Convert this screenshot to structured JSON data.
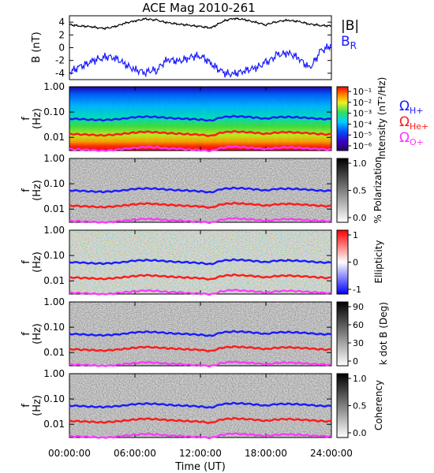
{
  "title": "ACE Mag 2010-261",
  "colors": {
    "b_total": "#000000",
    "b_r": "#1a1aff",
    "h_plus": "#1a1aff",
    "he_plus": "#ff1a1a",
    "o_plus": "#ff33ff",
    "background": "#ffffff"
  },
  "chart_data": [
    {
      "type": "line",
      "panel": "magnetic-field",
      "ylabel": "B (nT)",
      "ylim": [
        -5,
        5
      ],
      "yticks": [
        "4",
        "2",
        "0",
        "-2",
        "-4"
      ],
      "legend": [
        "|B|",
        "B_R"
      ],
      "legend_placement": "right",
      "x_range_hours": [
        0,
        24
      ],
      "series": [
        {
          "name": "|B|",
          "x": [
            0,
            1,
            2,
            3,
            4,
            5,
            6,
            7,
            8,
            9,
            10,
            11,
            12,
            13,
            14,
            15,
            16,
            17,
            18,
            19,
            20,
            21,
            22,
            23,
            24
          ],
          "values": [
            3.6,
            3.4,
            3.3,
            3.0,
            3.2,
            3.8,
            4.2,
            4.5,
            4.3,
            3.9,
            3.7,
            3.5,
            3.3,
            3.1,
            4.1,
            4.6,
            4.4,
            4.0,
            3.6,
            4.1,
            4.3,
            4.1,
            3.7,
            3.5,
            3.4
          ]
        },
        {
          "name": "B_R",
          "x": [
            0,
            1,
            2,
            3,
            4,
            5,
            6,
            7,
            8,
            9,
            10,
            11,
            12,
            13,
            14,
            15,
            16,
            17,
            18,
            19,
            20,
            21,
            22,
            23,
            24
          ],
          "values": [
            -3.8,
            -3.0,
            -2.2,
            -1.5,
            -1.4,
            -2.5,
            -3.5,
            -3.8,
            -3.4,
            -1.8,
            -2.2,
            -1.5,
            -1.2,
            -2.5,
            -3.9,
            -4.2,
            -3.6,
            -3.2,
            -2.4,
            -1.2,
            -0.8,
            -1.6,
            -3.3,
            -0.6,
            0.4
          ]
        }
      ]
    },
    {
      "type": "heatmap",
      "panel": "intensity",
      "ylabel": "f (Hz)",
      "yscale": "log",
      "ylim": [
        0.003,
        1.0
      ],
      "yticks": [
        "1.00",
        "0.10",
        "0.01"
      ],
      "colorbar_label": "Intensity (nT²/Hz)",
      "colorbar_ticks": [
        "10⁻¹",
        "10⁻²",
        "10⁻³",
        "10⁻⁴",
        "10⁻⁵",
        "10⁻⁶"
      ],
      "colormap": "rainbow",
      "legend": [
        "Ω_H+",
        "Ω_He+",
        "Ω_O+"
      ],
      "legend_placement": "right"
    },
    {
      "type": "heatmap",
      "panel": "polarization",
      "ylabel": "f (Hz)",
      "yscale": "log",
      "ylim": [
        0.003,
        1.0
      ],
      "yticks": [
        "1.00",
        "0.10",
        "0.01"
      ],
      "colorbar_label": "% Polarization",
      "colorbar_ticks": [
        "1.0",
        "0.5",
        "0.0"
      ],
      "colormap": "grayscale"
    },
    {
      "type": "heatmap",
      "panel": "ellipticity",
      "ylabel": "f (Hz)",
      "yscale": "log",
      "ylim": [
        0.003,
        1.0
      ],
      "yticks": [
        "1.00",
        "0.10",
        "0.01"
      ],
      "colorbar_label": "Ellipticity",
      "colorbar_ticks": [
        "1",
        "0",
        "-1"
      ],
      "colormap": "blue-white-red"
    },
    {
      "type": "heatmap",
      "panel": "k-dot-b",
      "ylabel": "f (Hz)",
      "yscale": "log",
      "ylim": [
        0.003,
        1.0
      ],
      "yticks": [
        "1.00",
        "0.10",
        "0.01"
      ],
      "colorbar_label": "k dot B (Deg)",
      "colorbar_ticks": [
        "90",
        "60",
        "30",
        "0"
      ],
      "colormap": "grayscale"
    },
    {
      "type": "heatmap",
      "panel": "coherency",
      "ylabel": "f (Hz)",
      "yscale": "log",
      "ylim": [
        0.003,
        1.0
      ],
      "yticks": [
        "1.00",
        "0.10",
        "0.01"
      ],
      "colorbar_label": "Coherency",
      "colorbar_ticks": [
        "1.0",
        "0.5",
        "0.0"
      ],
      "colormap": "grayscale"
    }
  ],
  "gyrofrequencies": {
    "x": [
      0,
      1,
      2,
      3,
      4,
      5,
      6,
      7,
      8,
      9,
      10,
      11,
      12,
      13,
      14,
      15,
      16,
      17,
      18,
      19,
      20,
      21,
      22,
      23,
      24
    ],
    "h_plus": [
      0.055,
      0.052,
      0.05,
      0.048,
      0.05,
      0.056,
      0.062,
      0.066,
      0.064,
      0.058,
      0.056,
      0.053,
      0.05,
      0.046,
      0.062,
      0.068,
      0.066,
      0.06,
      0.055,
      0.062,
      0.064,
      0.062,
      0.057,
      0.054,
      0.052
    ],
    "he_plus": [
      0.0138,
      0.013,
      0.0125,
      0.012,
      0.0125,
      0.014,
      0.0155,
      0.0165,
      0.016,
      0.0145,
      0.014,
      0.0133,
      0.0125,
      0.0115,
      0.0155,
      0.017,
      0.0165,
      0.015,
      0.0138,
      0.0155,
      0.016,
      0.0155,
      0.0143,
      0.0135,
      0.013
    ],
    "o_plus": [
      0.0034,
      0.0033,
      0.0031,
      0.003,
      0.0031,
      0.0035,
      0.0039,
      0.0041,
      0.004,
      0.0036,
      0.0035,
      0.0033,
      0.0031,
      0.0029,
      0.0039,
      0.0043,
      0.0041,
      0.0038,
      0.0034,
      0.0039,
      0.004,
      0.0039,
      0.0036,
      0.0034,
      0.0033
    ]
  },
  "x_axis": {
    "label": "Time (UT)",
    "ticks": [
      "00:00:00",
      "06:00:00",
      "12:00:00",
      "18:00:00",
      "24:00:00"
    ],
    "range_hours": [
      0,
      24
    ]
  },
  "legend_text": {
    "b_total": "|B|",
    "b_r_main": "B",
    "b_r_sub": "R",
    "omega": "Ω",
    "h_plus": "H+",
    "he_plus": "He+",
    "o_plus": "O+"
  }
}
